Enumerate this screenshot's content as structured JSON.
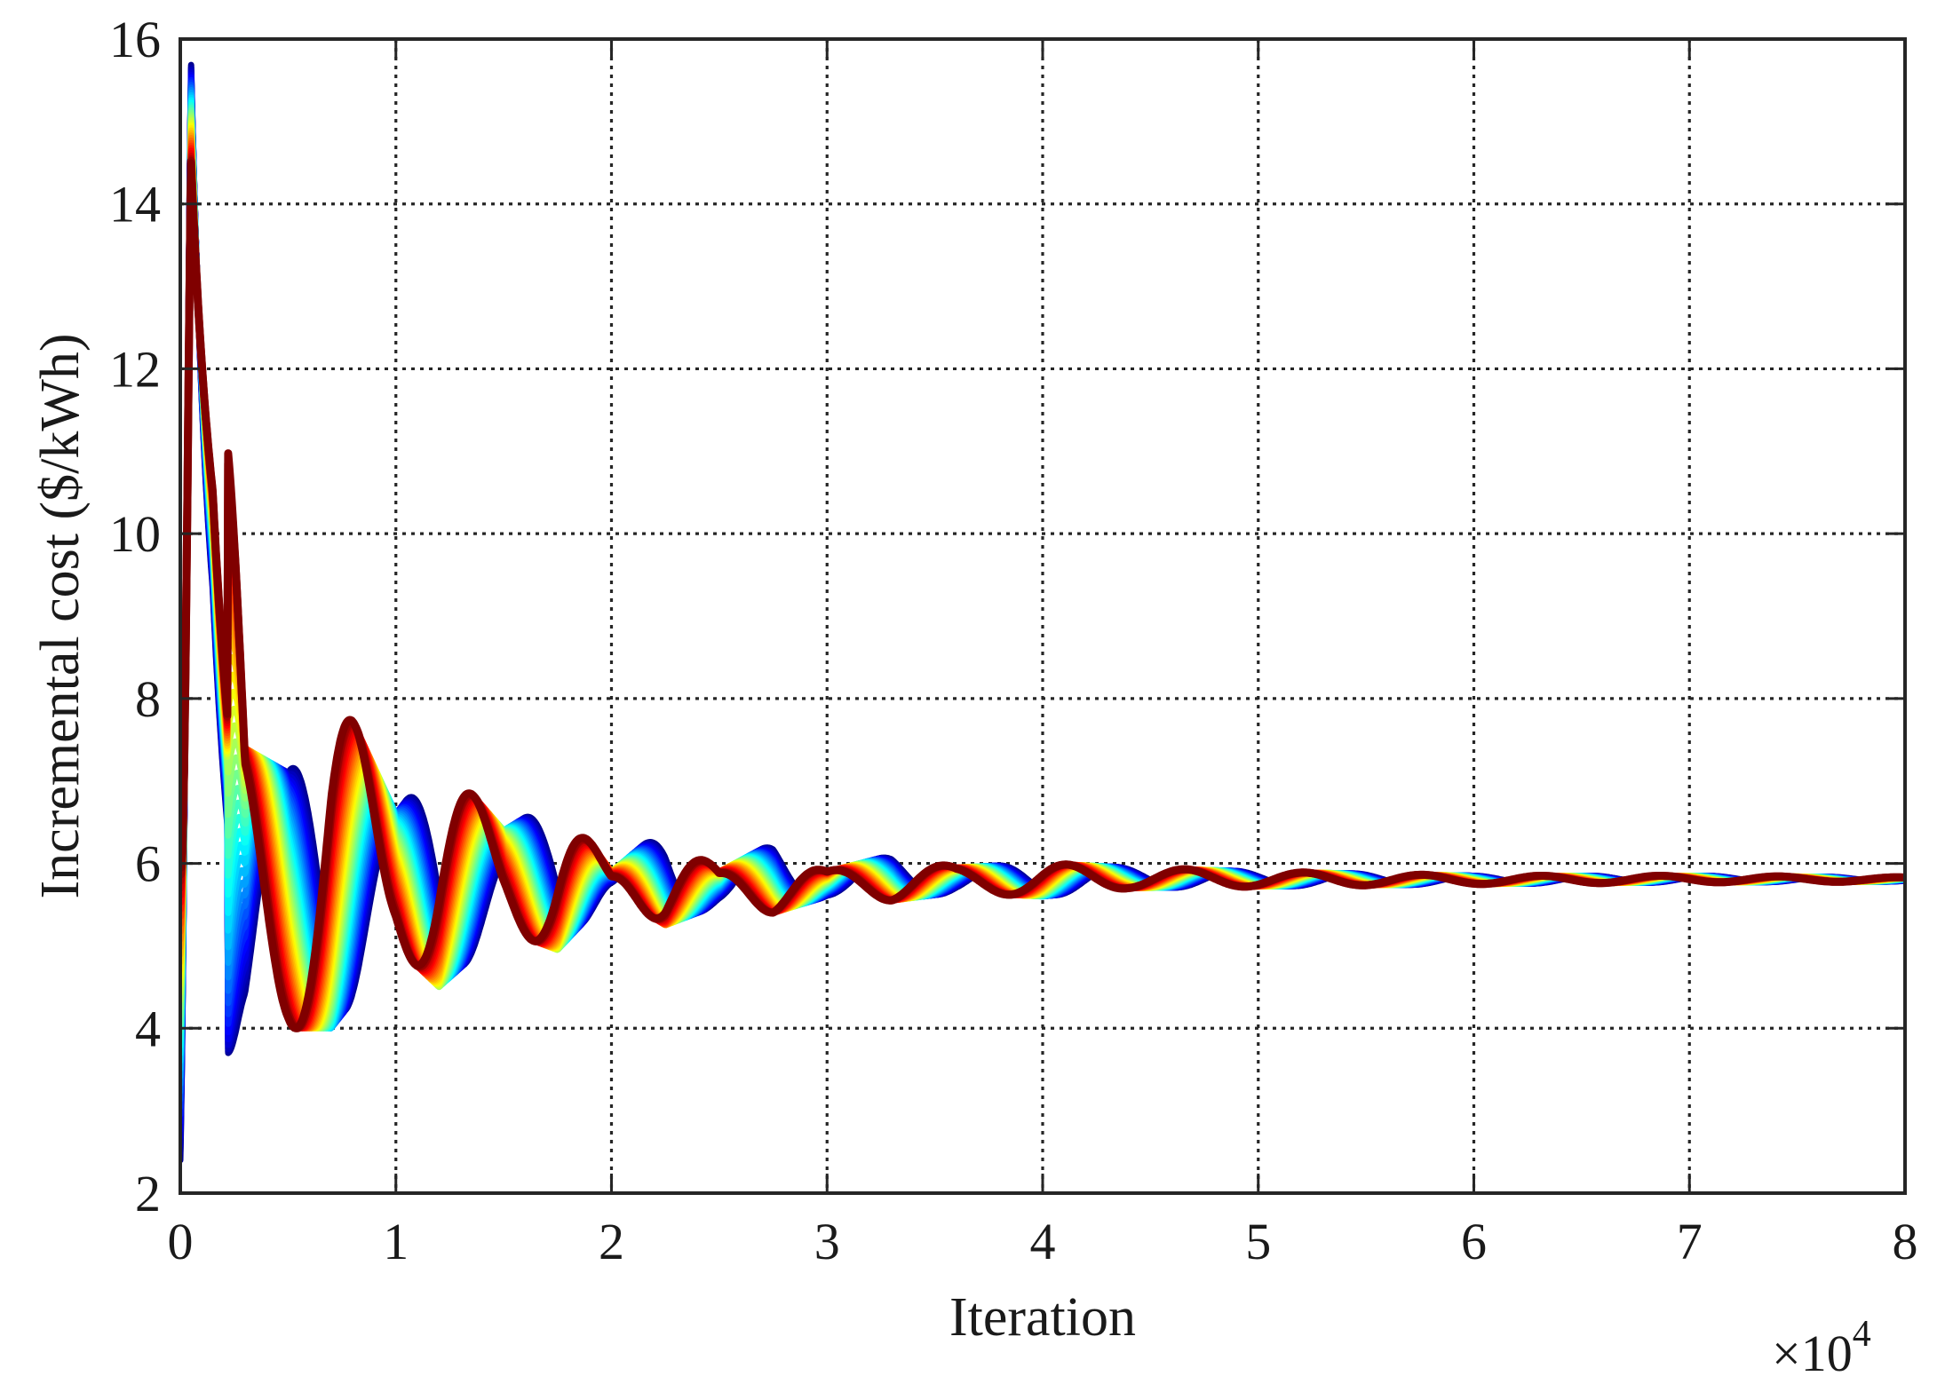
{
  "chart_data": {
    "type": "line",
    "title": "",
    "xlabel": "Iteration",
    "ylabel": "Incremental cost ($/kWh)",
    "x_multiplier": {
      "prefix": "×10",
      "exponent": "4"
    },
    "xlim": [
      0,
      8
    ],
    "ylim": [
      2,
      16
    ],
    "xticks": [
      0,
      1,
      2,
      3,
      4,
      5,
      6,
      7,
      8
    ],
    "yticks": [
      2,
      4,
      6,
      8,
      10,
      12,
      14,
      16
    ],
    "grid": true,
    "legend": "none",
    "colormap": [
      "#00008f",
      "#0000ff",
      "#0080ff",
      "#00ffff",
      "#80ff80",
      "#ffff00",
      "#ff8000",
      "#ff0000",
      "#800000"
    ],
    "series_count": 40,
    "final_value": 5.8,
    "envelope": {
      "x": [
        0,
        0.05,
        0.15,
        0.3,
        0.5,
        0.7,
        1.0,
        1.2,
        1.5,
        1.75,
        2.0,
        2.25,
        2.5,
        2.75,
        3.0,
        3.3,
        3.6,
        4.0,
        4.4,
        5.0,
        6.0,
        7.0,
        8.0
      ],
      "upper": [
        6.0,
        15.7,
        15.0,
        7.4,
        7.1,
        8.3,
        6.6,
        7.3,
        6.4,
        6.8,
        5.9,
        6.45,
        5.9,
        6.25,
        5.9,
        6.1,
        5.95,
        6.0,
        5.95,
        5.9,
        5.85,
        5.85,
        5.83
      ],
      "lower": [
        2.4,
        2.9,
        3.7,
        3.7,
        4.0,
        4.0,
        5.0,
        4.5,
        5.2,
        4.95,
        5.65,
        5.25,
        5.5,
        5.4,
        5.6,
        5.55,
        5.65,
        5.6,
        5.7,
        5.72,
        5.75,
        5.77,
        5.78
      ]
    },
    "oscillation_period": 0.55
  }
}
